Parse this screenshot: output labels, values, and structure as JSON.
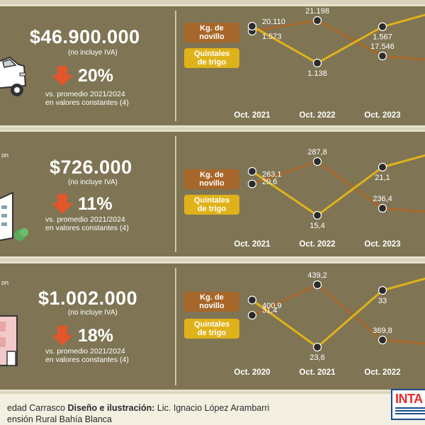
{
  "colors": {
    "background": "#d9d3bd",
    "panel": "#7f7554",
    "novillo": "#a8672a",
    "trigo": "#e0b21a",
    "arrow": "#e2562a",
    "text": "#ffffff"
  },
  "legend": {
    "novillo": [
      "Kg. de",
      "novillo"
    ],
    "trigo": [
      "Quintales",
      "de trigo"
    ]
  },
  "panels": [
    {
      "item_label": "",
      "price": "$46.900.000",
      "price_note": "(no incluye IVA)",
      "change": "20%",
      "change_direction": "down",
      "desc": [
        "vs. promedio 2021/2024",
        "en valores constantes (4)"
      ],
      "illustration_icon": "pickup-truck-icon"
    },
    {
      "item_label": "on",
      "price": "$726.000",
      "price_note": "(no incluye IVA)",
      "change": "11%",
      "change_direction": "down",
      "desc": [
        "vs. promedio 2021/2024",
        "en valores constantes (4)"
      ],
      "illustration_icon": "building-icon"
    },
    {
      "item_label": "on",
      "price": "$1.002.000",
      "price_note": "(no incluye IVA)",
      "change": "18%",
      "change_direction": "down",
      "desc": [
        "vs. promedio 2021/2024",
        "en valores constantes (4)"
      ],
      "illustration_icon": "house-icon"
    }
  ],
  "chart_data": [
    {
      "type": "line",
      "categories": [
        "Oct. 2021",
        "Oct. 2022",
        "Oct. 2023",
        ""
      ],
      "series": [
        {
          "name": "Kg. de novillo",
          "values": [
            20110,
            21198,
            17546,
            null
          ],
          "labels": [
            "20.110",
            "21.198",
            "17.546",
            ""
          ]
        },
        {
          "name": "Quintales de trigo",
          "values": [
            1573,
            1138,
            1567,
            null
          ],
          "labels": [
            "1.573",
            "1.138",
            "1.567",
            ""
          ]
        }
      ]
    },
    {
      "type": "line",
      "categories": [
        "Oct. 2021",
        "Oct. 2022",
        "Oct. 2023",
        ""
      ],
      "series": [
        {
          "name": "Kg. de novillo",
          "values": [
            263.1,
            287.8,
            236.4,
            null
          ],
          "labels": [
            "263,1",
            "287,8",
            "236,4",
            ""
          ]
        },
        {
          "name": "Quintales de trigo",
          "values": [
            20.6,
            15.4,
            21.1,
            null
          ],
          "labels": [
            "20,6",
            "15,4",
            "21,1",
            ""
          ]
        }
      ]
    },
    {
      "type": "line",
      "categories": [
        "Oct. 2020",
        "Oct. 2021",
        "Oct. 2022",
        ""
      ],
      "series": [
        {
          "name": "Kg. de novillo",
          "values": [
            400.9,
            439.2,
            369.8,
            null
          ],
          "labels": [
            "400,9",
            "439,2",
            "369,8",
            ""
          ]
        },
        {
          "name": "Quintales de trigo",
          "values": [
            31.4,
            23.6,
            33,
            null
          ],
          "labels": [
            "31,4",
            "23,6",
            "33",
            ""
          ]
        }
      ]
    }
  ],
  "footer": {
    "line1_prefix": "edad Carrasco",
    "line1_bold": "Diseño e ilustración:",
    "line1_suffix": "Lic. Ignacio López Arambarri",
    "line2": "ensión Rural Bahía Blanca",
    "logo_text": "INTA"
  }
}
